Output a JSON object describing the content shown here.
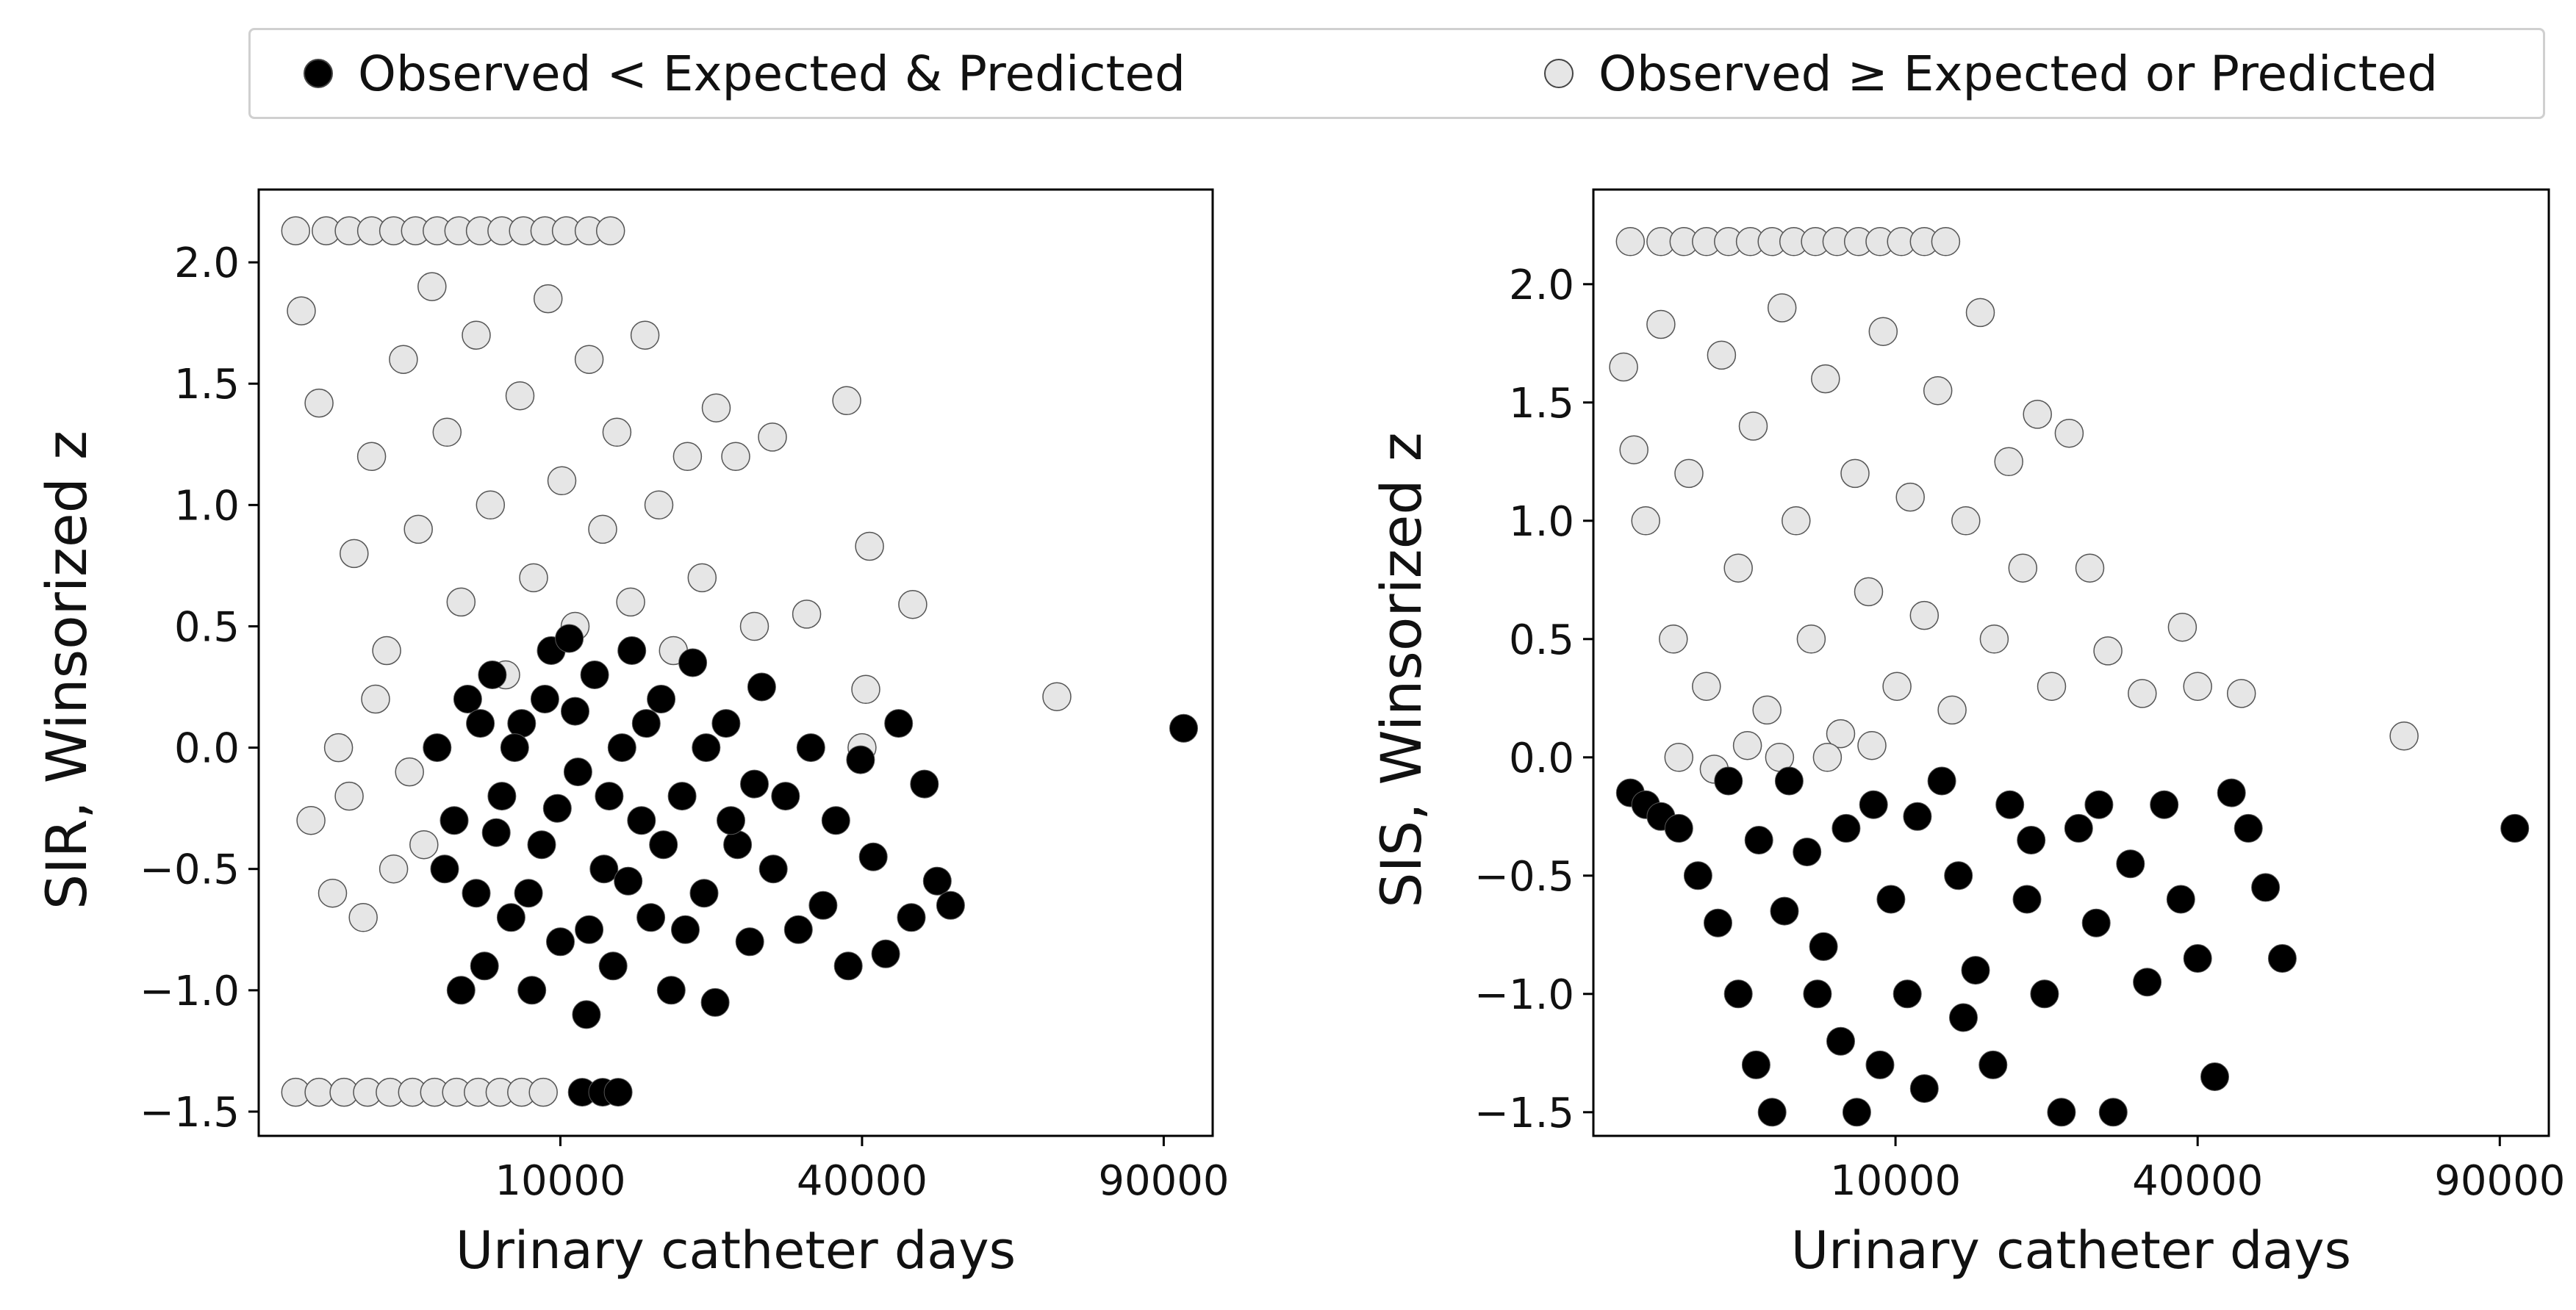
{
  "legend": {
    "items": [
      {
        "label": "Observed < Expected & Predicted",
        "color": "#000000"
      },
      {
        "label": "Observed ≥ Expected or Predicted",
        "color": "#e6e6e6"
      }
    ]
  },
  "chart_data": [
    {
      "type": "scatter",
      "title": "",
      "xlabel": "Urinary catheter days",
      "ylabel": "SIR, Winsorized z",
      "x_scale": "sqrt",
      "xlim": [
        0,
        100000
      ],
      "ylim": [
        -1.6,
        2.3
      ],
      "x_ticks": [
        10000,
        40000,
        90000
      ],
      "y_ticks": [
        -1.5,
        -1.0,
        -0.5,
        0.0,
        0.5,
        1.0,
        1.5,
        2.0
      ],
      "y_tick_labels": [
        "−1.5",
        "−1.0",
        "−0.5",
        "0.0",
        "0.5",
        "1.0",
        "1.5",
        "2.0"
      ],
      "grid": false,
      "legend_position": "top",
      "series": [
        {
          "name": "Observed < Expected & Predicted",
          "color": "#000000",
          "points": [
            [
              3500,
              0.0
            ],
            [
              4200,
              -0.3
            ],
            [
              4800,
              0.2
            ],
            [
              5200,
              -0.6
            ],
            [
              5600,
              -0.9
            ],
            [
              6000,
              0.3
            ],
            [
              6500,
              -0.2
            ],
            [
              7000,
              -0.7
            ],
            [
              7600,
              0.1
            ],
            [
              8200,
              -1.0
            ],
            [
              8800,
              -0.4
            ],
            [
              9400,
              0.4
            ],
            [
              10000,
              -0.8
            ],
            [
              10600,
              0.45
            ],
            [
              11200,
              -0.1
            ],
            [
              11800,
              -1.1
            ],
            [
              12400,
              0.3
            ],
            [
              13100,
              -0.5
            ],
            [
              13800,
              -0.9
            ],
            [
              14500,
              0.0
            ],
            [
              15300,
              0.4
            ],
            [
              16100,
              -0.3
            ],
            [
              16900,
              -0.7
            ],
            [
              17800,
              0.2
            ],
            [
              18700,
              -1.0
            ],
            [
              19700,
              -0.2
            ],
            [
              20700,
              0.35
            ],
            [
              21800,
              -0.6
            ],
            [
              22900,
              -1.05
            ],
            [
              24000,
              0.1
            ],
            [
              25200,
              -0.4
            ],
            [
              26500,
              -0.8
            ],
            [
              27800,
              0.25
            ],
            [
              29100,
              -0.5
            ],
            [
              30500,
              -0.2
            ],
            [
              32000,
              -0.75
            ],
            [
              33500,
              0.0
            ],
            [
              35000,
              -0.65
            ],
            [
              36600,
              -0.3
            ],
            [
              38200,
              -0.9
            ],
            [
              39800,
              -0.05
            ],
            [
              41500,
              -0.45
            ],
            [
              43200,
              -0.85
            ],
            [
              45000,
              0.1
            ],
            [
              46800,
              -0.7
            ],
            [
              48700,
              -0.15
            ],
            [
              50600,
              -0.55
            ],
            [
              52600,
              -0.65
            ],
            [
              94000,
              0.08
            ],
            [
              3800,
              -0.5
            ],
            [
              4500,
              -1.0
            ],
            [
              5400,
              0.1
            ],
            [
              6200,
              -0.35
            ],
            [
              7200,
              0.0
            ],
            [
              8000,
              -0.6
            ],
            [
              9000,
              0.2
            ],
            [
              9800,
              -0.25
            ],
            [
              11000,
              0.15
            ],
            [
              12000,
              -0.75
            ],
            [
              13500,
              -0.2
            ],
            [
              15000,
              -0.55
            ],
            [
              16500,
              0.1
            ],
            [
              18000,
              -0.4
            ],
            [
              20000,
              -0.75
            ],
            [
              22000,
              0.0
            ],
            [
              24500,
              -0.3
            ],
            [
              27000,
              -0.15
            ],
            [
              11500,
              -1.42
            ],
            [
              13000,
              -1.42
            ],
            [
              14200,
              -1.42
            ]
          ]
        },
        {
          "name": "Observed ≥ Expected or Predicted",
          "color": "#e6e6e6",
          "points": [
            [
              150,
              2.13
            ],
            [
              500,
              2.13
            ],
            [
              900,
              2.13
            ],
            [
              1400,
              2.13
            ],
            [
              2000,
              2.13
            ],
            [
              2700,
              2.13
            ],
            [
              3500,
              2.13
            ],
            [
              4400,
              2.13
            ],
            [
              5400,
              2.13
            ],
            [
              6500,
              2.13
            ],
            [
              7700,
              2.13
            ],
            [
              9000,
              2.13
            ],
            [
              10400,
              2.13
            ],
            [
              12000,
              2.13
            ],
            [
              13600,
              2.13
            ],
            [
              200,
              1.8
            ],
            [
              400,
              1.42
            ],
            [
              700,
              0.0
            ],
            [
              1000,
              0.8
            ],
            [
              1400,
              1.2
            ],
            [
              1800,
              0.4
            ],
            [
              2300,
              1.6
            ],
            [
              2800,
              0.9
            ],
            [
              3300,
              1.9
            ],
            [
              3900,
              1.3
            ],
            [
              4500,
              0.6
            ],
            [
              5200,
              1.7
            ],
            [
              5900,
              1.0
            ],
            [
              6700,
              0.3
            ],
            [
              7500,
              1.45
            ],
            [
              8300,
              0.7
            ],
            [
              9200,
              1.85
            ],
            [
              10100,
              1.1
            ],
            [
              11000,
              0.5
            ],
            [
              12000,
              1.6
            ],
            [
              13000,
              0.9
            ],
            [
              14100,
              1.3
            ],
            [
              15200,
              0.6
            ],
            [
              16400,
              1.7
            ],
            [
              17600,
              1.0
            ],
            [
              18900,
              0.4
            ],
            [
              20200,
              1.2
            ],
            [
              21600,
              0.7
            ],
            [
              23000,
              1.4
            ],
            [
              25000,
              1.2
            ],
            [
              27000,
              0.5
            ],
            [
              29000,
              1.28
            ],
            [
              33000,
              0.55
            ],
            [
              38000,
              1.43
            ],
            [
              41000,
              0.83
            ],
            [
              47000,
              0.59
            ],
            [
              40500,
              0.24
            ],
            [
              40000,
              0.0
            ],
            [
              70000,
              0.21
            ],
            [
              300,
              -0.3
            ],
            [
              600,
              -0.6
            ],
            [
              900,
              -0.2
            ],
            [
              1200,
              -0.7
            ],
            [
              1500,
              0.2
            ],
            [
              2000,
              -0.5
            ],
            [
              2500,
              -0.1
            ],
            [
              3000,
              -0.4
            ],
            [
              150,
              -1.42
            ],
            [
              400,
              -1.42
            ],
            [
              800,
              -1.42
            ],
            [
              1300,
              -1.42
            ],
            [
              1900,
              -1.42
            ],
            [
              2600,
              -1.42
            ],
            [
              3400,
              -1.42
            ],
            [
              4300,
              -1.42
            ],
            [
              5300,
              -1.42
            ],
            [
              6400,
              -1.42
            ],
            [
              7600,
              -1.42
            ],
            [
              8900,
              -1.42
            ]
          ]
        }
      ]
    },
    {
      "type": "scatter",
      "title": "",
      "xlabel": "Urinary catheter days",
      "ylabel": "SIS, Winsorized z",
      "x_scale": "sqrt",
      "xlim": [
        0,
        100000
      ],
      "ylim": [
        -1.6,
        2.4
      ],
      "x_ticks": [
        10000,
        40000,
        90000
      ],
      "y_ticks": [
        -1.5,
        -1.0,
        -0.5,
        0.0,
        0.5,
        1.0,
        1.5,
        2.0
      ],
      "y_tick_labels": [
        "−1.5",
        "−1.0",
        "−0.5",
        "0.0",
        "0.5",
        "1.0",
        "1.5",
        "2.0"
      ],
      "grid": false,
      "legend_position": "top",
      "series": [
        {
          "name": "Observed < Expected & Predicted",
          "color": "#000000",
          "points": [
            [
              150,
              -0.15
            ],
            [
              300,
              -0.2
            ],
            [
              500,
              -0.25
            ],
            [
              800,
              -0.3
            ],
            [
              1200,
              -0.5
            ],
            [
              1700,
              -0.7
            ],
            [
              2300,
              -1.0
            ],
            [
              2900,
              -1.3
            ],
            [
              3500,
              -1.5
            ],
            [
              4200,
              -0.1
            ],
            [
              5000,
              -0.4
            ],
            [
              5800,
              -0.8
            ],
            [
              6700,
              -1.2
            ],
            [
              7600,
              -1.5
            ],
            [
              8600,
              -0.2
            ],
            [
              9700,
              -0.6
            ],
            [
              10800,
              -1.0
            ],
            [
              12000,
              -1.4
            ],
            [
              13300,
              -0.1
            ],
            [
              14600,
              -0.5
            ],
            [
              16000,
              -0.9
            ],
            [
              17500,
              -1.3
            ],
            [
              19000,
              -0.2
            ],
            [
              20600,
              -0.6
            ],
            [
              22300,
              -1.0
            ],
            [
              24000,
              -1.5
            ],
            [
              25800,
              -0.3
            ],
            [
              27700,
              -0.7
            ],
            [
              29600,
              -1.5
            ],
            [
              31600,
              -0.45
            ],
            [
              33600,
              -0.95
            ],
            [
              35700,
              -0.2
            ],
            [
              37800,
              -0.6
            ],
            [
              40000,
              -0.85
            ],
            [
              42300,
              -1.35
            ],
            [
              44600,
              -0.15
            ],
            [
              47000,
              -0.3
            ],
            [
              49500,
              -0.55
            ],
            [
              52000,
              -0.85
            ],
            [
              93000,
              -0.3
            ],
            [
              2000,
              -0.1
            ],
            [
              3000,
              -0.35
            ],
            [
              4000,
              -0.65
            ],
            [
              5500,
              -1.0
            ],
            [
              7000,
              -0.3
            ],
            [
              9000,
              -1.3
            ],
            [
              11500,
              -0.25
            ],
            [
              15000,
              -1.1
            ],
            [
              21000,
              -0.35
            ],
            [
              28000,
              -0.2
            ]
          ]
        },
        {
          "name": "Observed ≥ Expected or Predicted",
          "color": "#e6e6e6",
          "points": [
            [
              150,
              2.18
            ],
            [
              500,
              2.18
            ],
            [
              900,
              2.18
            ],
            [
              1400,
              2.18
            ],
            [
              2000,
              2.18
            ],
            [
              2700,
              2.18
            ],
            [
              3500,
              2.18
            ],
            [
              4400,
              2.18
            ],
            [
              5400,
              2.18
            ],
            [
              6500,
              2.18
            ],
            [
              7700,
              2.18
            ],
            [
              9000,
              2.18
            ],
            [
              10400,
              2.18
            ],
            [
              12000,
              2.18
            ],
            [
              13600,
              2.18
            ],
            [
              100,
              1.65
            ],
            [
              180,
              1.3
            ],
            [
              300,
              1.0
            ],
            [
              500,
              1.83
            ],
            [
              700,
              0.5
            ],
            [
              1000,
              1.2
            ],
            [
              1400,
              0.3
            ],
            [
              1800,
              1.7
            ],
            [
              2300,
              0.8
            ],
            [
              2800,
              1.4
            ],
            [
              3300,
              0.2
            ],
            [
              3900,
              1.9
            ],
            [
              4500,
              1.0
            ],
            [
              5200,
              0.5
            ],
            [
              5900,
              1.6
            ],
            [
              6700,
              0.1
            ],
            [
              7500,
              1.2
            ],
            [
              8300,
              0.7
            ],
            [
              9200,
              1.8
            ],
            [
              10100,
              0.3
            ],
            [
              11000,
              1.1
            ],
            [
              12000,
              0.6
            ],
            [
              13000,
              1.55
            ],
            [
              14100,
              0.2
            ],
            [
              15200,
              1.0
            ],
            [
              16400,
              1.88
            ],
            [
              17600,
              0.5
            ],
            [
              18900,
              1.25
            ],
            [
              20200,
              0.8
            ],
            [
              21600,
              1.45
            ],
            [
              23000,
              0.3
            ],
            [
              24800,
              1.37
            ],
            [
              27000,
              0.8
            ],
            [
              29000,
              0.45
            ],
            [
              33000,
              0.27
            ],
            [
              38000,
              0.55
            ],
            [
              40000,
              0.3
            ],
            [
              46000,
              0.27
            ],
            [
              72000,
              0.09
            ],
            [
              800,
              0.0
            ],
            [
              1600,
              -0.05
            ],
            [
              2600,
              0.05
            ],
            [
              3800,
              0.0
            ],
            [
              6000,
              0.0
            ],
            [
              8500,
              0.05
            ]
          ]
        }
      ]
    }
  ]
}
